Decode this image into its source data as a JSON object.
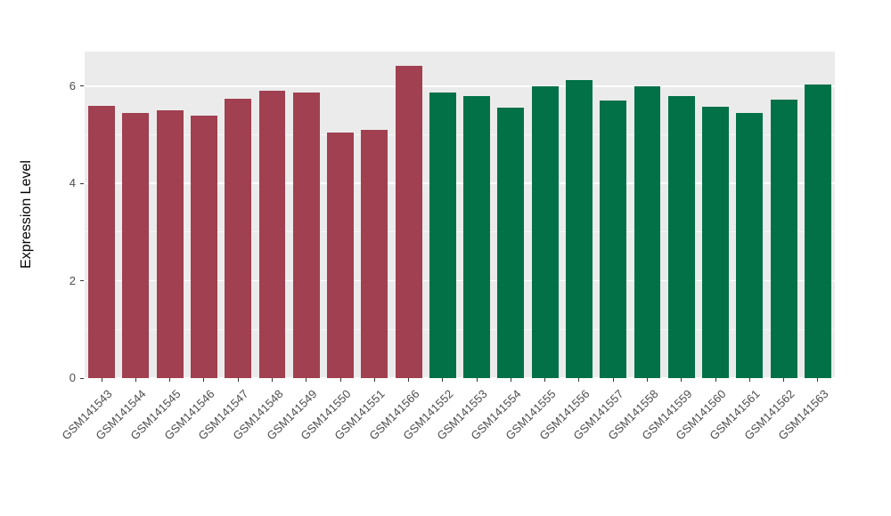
{
  "chart_data": {
    "type": "bar",
    "title": "",
    "xlabel": "",
    "ylabel": "Expression Level",
    "ylim": [
      0,
      6.71
    ],
    "yticks": [
      0,
      2,
      4,
      6
    ],
    "minor_ticks": [
      1,
      3,
      5
    ],
    "grid": true,
    "legend": "none",
    "panel_background": "#EBEBEB",
    "grid_color": "#FFFFFF",
    "group_colors": {
      "group1": "#A04050",
      "group2": "#027148"
    },
    "categories": [
      "GSM141543",
      "GSM141544",
      "GSM141545",
      "GSM141546",
      "GSM141547",
      "GSM141548",
      "GSM141549",
      "GSM141550",
      "GSM141551",
      "GSM141566",
      "GSM141552",
      "GSM141553",
      "GSM141554",
      "GSM141555",
      "GSM141556",
      "GSM141557",
      "GSM141558",
      "GSM141559",
      "GSM141560",
      "GSM141561",
      "GSM141562",
      "GSM141563"
    ],
    "bars": [
      {
        "label": "GSM141543",
        "value": 5.6,
        "color": "#A04050"
      },
      {
        "label": "GSM141544",
        "value": 5.45,
        "color": "#A04050"
      },
      {
        "label": "GSM141545",
        "value": 5.5,
        "color": "#A04050"
      },
      {
        "label": "GSM141546",
        "value": 5.4,
        "color": "#A04050"
      },
      {
        "label": "GSM141547",
        "value": 5.75,
        "color": "#A04050"
      },
      {
        "label": "GSM141548",
        "value": 5.9,
        "color": "#A04050"
      },
      {
        "label": "GSM141549",
        "value": 5.87,
        "color": "#A04050"
      },
      {
        "label": "GSM141550",
        "value": 5.05,
        "color": "#A04050"
      },
      {
        "label": "GSM141551",
        "value": 5.1,
        "color": "#A04050"
      },
      {
        "label": "GSM141566",
        "value": 6.42,
        "color": "#A04050"
      },
      {
        "label": "GSM141552",
        "value": 5.87,
        "color": "#027148"
      },
      {
        "label": "GSM141553",
        "value": 5.8,
        "color": "#027148"
      },
      {
        "label": "GSM141554",
        "value": 5.55,
        "color": "#027148"
      },
      {
        "label": "GSM141555",
        "value": 6.0,
        "color": "#027148"
      },
      {
        "label": "GSM141556",
        "value": 6.13,
        "color": "#027148"
      },
      {
        "label": "GSM141557",
        "value": 5.7,
        "color": "#027148"
      },
      {
        "label": "GSM141558",
        "value": 6.0,
        "color": "#027148"
      },
      {
        "label": "GSM141559",
        "value": 5.8,
        "color": "#027148"
      },
      {
        "label": "GSM141560",
        "value": 5.57,
        "color": "#027148"
      },
      {
        "label": "GSM141561",
        "value": 5.45,
        "color": "#027148"
      },
      {
        "label": "GSM141562",
        "value": 5.73,
        "color": "#027148"
      },
      {
        "label": "GSM141563",
        "value": 6.03,
        "color": "#027148"
      }
    ]
  }
}
